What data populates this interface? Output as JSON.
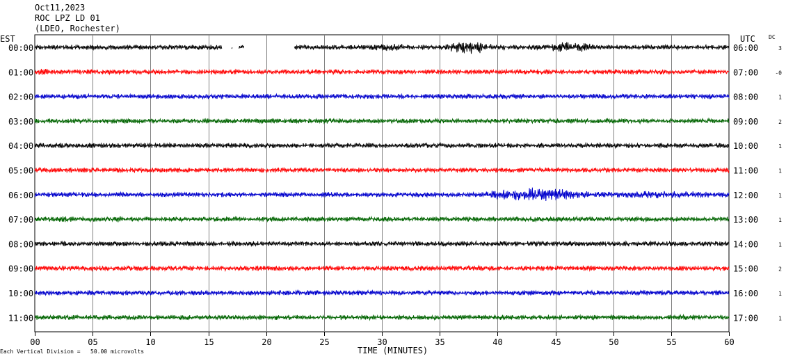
{
  "header": {
    "date": "Oct11,2023",
    "station": "ROC LPZ LD 01",
    "network": "(LDEO, Rochester)"
  },
  "left_zone_label": "EST",
  "right_zone_label": "UTC",
  "dc_label": "DC",
  "x_axis_title": "TIME (MINUTES)",
  "footnote": "Each Vertical Division =   50.00 microvolts",
  "colors": {
    "black": "#000000",
    "red": "#ff0000",
    "blue": "#0000cc",
    "green": "#006400",
    "grid": "#808080"
  },
  "chart_data": {
    "type": "line",
    "title": "Oct11,2023 ROC LPZ LD 01 (LDEO, Rochester)",
    "xlabel": "TIME (MINUTES)",
    "ylabel": "",
    "xlim": [
      0,
      60
    ],
    "x_ticks": [
      "00",
      "05",
      "10",
      "15",
      "20",
      "25",
      "30",
      "35",
      "40",
      "45",
      "50",
      "55",
      "60"
    ],
    "grid": true,
    "units": "microvolts",
    "vertical_division_microvolts": 50.0,
    "series": [
      {
        "est": "00:00",
        "utc": "06:00",
        "dc": "3",
        "color": "black",
        "gaps": [
          [
            16.2,
            17.0
          ],
          [
            17.1,
            17.6
          ],
          [
            18.1,
            22.4
          ]
        ],
        "events": [
          {
            "start": 35.5,
            "end": 39.5,
            "amp": 2.6
          },
          {
            "start": 44.0,
            "end": 48.5,
            "amp": 2.1
          },
          {
            "start": 28.0,
            "end": 34.0,
            "amp": 1.4
          }
        ]
      },
      {
        "est": "01:00",
        "utc": "07:00",
        "dc": "-0",
        "color": "red",
        "gaps": [],
        "events": [
          {
            "start": 0.0,
            "end": 1.5,
            "amp": 1.3
          }
        ]
      },
      {
        "est": "02:00",
        "utc": "08:00",
        "dc": "1",
        "color": "blue",
        "gaps": [],
        "events": []
      },
      {
        "est": "03:00",
        "utc": "09:00",
        "dc": "2",
        "color": "green",
        "gaps": [],
        "events": []
      },
      {
        "est": "04:00",
        "utc": "10:00",
        "dc": "1",
        "color": "black",
        "gaps": [],
        "events": []
      },
      {
        "est": "05:00",
        "utc": "11:00",
        "dc": "1",
        "color": "red",
        "gaps": [],
        "events": []
      },
      {
        "est": "06:00",
        "utc": "12:00",
        "dc": "1",
        "color": "blue",
        "gaps": [],
        "events": [
          {
            "start": 39.0,
            "end": 48.0,
            "amp": 2.8
          },
          {
            "start": 48.0,
            "end": 60.0,
            "amp": 1.5
          }
        ]
      },
      {
        "est": "07:00",
        "utc": "13:00",
        "dc": "1",
        "color": "green",
        "gaps": [],
        "events": [
          {
            "start": 2.0,
            "end": 3.0,
            "amp": 1.5
          },
          {
            "start": 6.8,
            "end": 7.8,
            "amp": 1.4
          }
        ]
      },
      {
        "est": "08:00",
        "utc": "14:00",
        "dc": "1",
        "color": "black",
        "gaps": [],
        "events": []
      },
      {
        "est": "09:00",
        "utc": "15:00",
        "dc": "2",
        "color": "red",
        "gaps": [],
        "events": []
      },
      {
        "est": "10:00",
        "utc": "16:00",
        "dc": "1",
        "color": "blue",
        "gaps": [],
        "events": []
      },
      {
        "est": "11:00",
        "utc": "17:00",
        "dc": "1",
        "color": "green",
        "gaps": [],
        "events": []
      }
    ]
  }
}
